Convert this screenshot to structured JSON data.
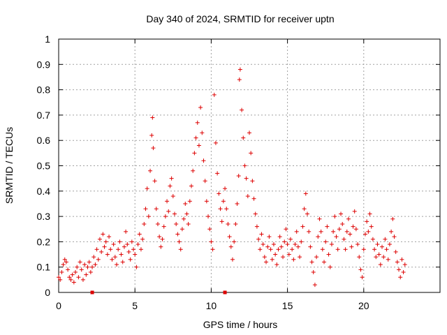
{
  "chart_data": {
    "type": "scatter",
    "title": "Day 340 of 2024, SRMTID for receiver uptn",
    "xlabel": "GPS time / hours",
    "ylabel": "SRMTID / TECUs",
    "xlim": [
      0,
      25
    ],
    "ylim": [
      0,
      1
    ],
    "x_ticks": [
      0,
      5,
      10,
      15,
      20
    ],
    "x_tick_labels": [
      "0",
      "5",
      "10",
      "15",
      "20"
    ],
    "y_ticks": [
      0,
      0.1,
      0.2,
      0.3,
      0.4,
      0.5,
      0.6,
      0.7,
      0.8,
      0.9,
      1
    ],
    "y_tick_labels": [
      "0",
      "0.1",
      "0.2",
      "0.3",
      "0.4",
      "0.5",
      "0.6",
      "0.7",
      "0.8",
      "0.9",
      "1"
    ],
    "grid": true,
    "marker": "+",
    "color": "#dd0000",
    "series": [
      {
        "name": "SRMTID",
        "points": [
          [
            0.0,
            0.06
          ],
          [
            0.1,
            0.05
          ],
          [
            0.2,
            0.08
          ],
          [
            0.3,
            0.11
          ],
          [
            0.4,
            0.13
          ],
          [
            0.5,
            0.12
          ],
          [
            0.6,
            0.09
          ],
          [
            0.7,
            0.06
          ],
          [
            0.8,
            0.05
          ],
          [
            0.9,
            0.07
          ],
          [
            1.0,
            0.04
          ],
          [
            1.1,
            0.08
          ],
          [
            1.2,
            0.1
          ],
          [
            1.3,
            0.06
          ],
          [
            1.4,
            0.12
          ],
          [
            1.5,
            0.09
          ],
          [
            1.6,
            0.05
          ],
          [
            1.7,
            0.11
          ],
          [
            1.8,
            0.07
          ],
          [
            1.9,
            0.1
          ],
          [
            2.0,
            0.12
          ],
          [
            2.1,
            0.08
          ],
          [
            2.2,
            0.1
          ],
          [
            2.3,
            0.14
          ],
          [
            2.4,
            0.11
          ],
          [
            2.5,
            0.17
          ],
          [
            2.6,
            0.13
          ],
          [
            2.7,
            0.21
          ],
          [
            2.8,
            0.16
          ],
          [
            2.9,
            0.23
          ],
          [
            3.0,
            0.18
          ],
          [
            3.1,
            0.2
          ],
          [
            3.2,
            0.15
          ],
          [
            3.3,
            0.22
          ],
          [
            3.4,
            0.17
          ],
          [
            3.5,
            0.13
          ],
          [
            3.6,
            0.19
          ],
          [
            3.7,
            0.14
          ],
          [
            3.8,
            0.11
          ],
          [
            3.9,
            0.17
          ],
          [
            4.0,
            0.2
          ],
          [
            4.1,
            0.15
          ],
          [
            4.2,
            0.12
          ],
          [
            4.3,
            0.18
          ],
          [
            4.4,
            0.24
          ],
          [
            4.5,
            0.19
          ],
          [
            4.6,
            0.16
          ],
          [
            4.7,
            0.13
          ],
          [
            4.8,
            0.2
          ],
          [
            4.9,
            0.17
          ],
          [
            5.0,
            0.15
          ],
          [
            5.1,
            0.1
          ],
          [
            5.2,
            0.19
          ],
          [
            5.3,
            0.23
          ],
          [
            5.4,
            0.17
          ],
          [
            5.5,
            0.21
          ],
          [
            5.6,
            0.27
          ],
          [
            5.7,
            0.33
          ],
          [
            5.8,
            0.41
          ],
          [
            5.9,
            0.3
          ],
          [
            6.0,
            0.48
          ],
          [
            6.1,
            0.62
          ],
          [
            6.15,
            0.69
          ],
          [
            6.2,
            0.57
          ],
          [
            6.3,
            0.44
          ],
          [
            6.4,
            0.33
          ],
          [
            6.5,
            0.27
          ],
          [
            6.6,
            0.22
          ],
          [
            6.7,
            0.18
          ],
          [
            6.8,
            0.21
          ],
          [
            6.9,
            0.26
          ],
          [
            7.0,
            0.3
          ],
          [
            7.1,
            0.36
          ],
          [
            7.2,
            0.32
          ],
          [
            7.3,
            0.42
          ],
          [
            7.4,
            0.45
          ],
          [
            7.5,
            0.38
          ],
          [
            7.6,
            0.31
          ],
          [
            7.7,
            0.27
          ],
          [
            7.8,
            0.23
          ],
          [
            7.9,
            0.2
          ],
          [
            8.0,
            0.17
          ],
          [
            8.1,
            0.25
          ],
          [
            8.2,
            0.29
          ],
          [
            8.3,
            0.35
          ],
          [
            8.4,
            0.31
          ],
          [
            8.5,
            0.27
          ],
          [
            8.6,
            0.36
          ],
          [
            8.7,
            0.42
          ],
          [
            8.8,
            0.48
          ],
          [
            8.9,
            0.55
          ],
          [
            9.0,
            0.61
          ],
          [
            9.1,
            0.67
          ],
          [
            9.2,
            0.58
          ],
          [
            9.3,
            0.73
          ],
          [
            9.4,
            0.63
          ],
          [
            9.5,
            0.52
          ],
          [
            9.6,
            0.44
          ],
          [
            9.7,
            0.36
          ],
          [
            9.8,
            0.3
          ],
          [
            9.9,
            0.25
          ],
          [
            10.0,
            0.2
          ],
          [
            10.1,
            0.17
          ],
          [
            10.2,
            0.78
          ],
          [
            10.3,
            0.59
          ],
          [
            10.4,
            0.47
          ],
          [
            10.5,
            0.39
          ],
          [
            10.6,
            0.33
          ],
          [
            10.7,
            0.28
          ],
          [
            10.8,
            0.36
          ],
          [
            10.9,
            0.41
          ],
          [
            11.0,
            0.33
          ],
          [
            11.1,
            0.27
          ],
          [
            11.2,
            0.22
          ],
          [
            11.3,
            0.18
          ],
          [
            11.4,
            0.13
          ],
          [
            11.5,
            0.2
          ],
          [
            11.6,
            0.27
          ],
          [
            11.7,
            0.35
          ],
          [
            11.8,
            0.46
          ],
          [
            11.85,
            0.84
          ],
          [
            11.9,
            0.88
          ],
          [
            12.0,
            0.72
          ],
          [
            12.1,
            0.61
          ],
          [
            12.2,
            0.5
          ],
          [
            12.3,
            0.45
          ],
          [
            12.4,
            0.38
          ],
          [
            12.5,
            0.63
          ],
          [
            12.6,
            0.55
          ],
          [
            12.7,
            0.44
          ],
          [
            12.8,
            0.37
          ],
          [
            12.9,
            0.31
          ],
          [
            13.0,
            0.26
          ],
          [
            13.1,
            0.21
          ],
          [
            13.2,
            0.17
          ],
          [
            13.3,
            0.23
          ],
          [
            13.4,
            0.19
          ],
          [
            13.5,
            0.14
          ],
          [
            13.6,
            0.12
          ],
          [
            13.7,
            0.18
          ],
          [
            13.8,
            0.22
          ],
          [
            13.9,
            0.17
          ],
          [
            14.0,
            0.13
          ],
          [
            14.1,
            0.19
          ],
          [
            14.2,
            0.15
          ],
          [
            14.3,
            0.11
          ],
          [
            14.4,
            0.17
          ],
          [
            14.5,
            0.22
          ],
          [
            14.6,
            0.18
          ],
          [
            14.7,
            0.14
          ],
          [
            14.8,
            0.2
          ],
          [
            14.9,
            0.25
          ],
          [
            15.0,
            0.19
          ],
          [
            15.1,
            0.15
          ],
          [
            15.2,
            0.21
          ],
          [
            15.3,
            0.17
          ],
          [
            15.4,
            0.13
          ],
          [
            15.5,
            0.19
          ],
          [
            15.6,
            0.24
          ],
          [
            15.7,
            0.18
          ],
          [
            15.8,
            0.14
          ],
          [
            15.9,
            0.2
          ],
          [
            16.0,
            0.26
          ],
          [
            16.1,
            0.33
          ],
          [
            16.2,
            0.39
          ],
          [
            16.3,
            0.31
          ],
          [
            16.4,
            0.24
          ],
          [
            16.5,
            0.18
          ],
          [
            16.6,
            0.12
          ],
          [
            16.7,
            0.08
          ],
          [
            16.8,
            0.03
          ],
          [
            16.9,
            0.14
          ],
          [
            17.0,
            0.22
          ],
          [
            17.1,
            0.29
          ],
          [
            17.2,
            0.24
          ],
          [
            17.3,
            0.17
          ],
          [
            17.4,
            0.12
          ],
          [
            17.5,
            0.2
          ],
          [
            17.6,
            0.26
          ],
          [
            17.7,
            0.15
          ],
          [
            17.8,
            0.1
          ],
          [
            17.9,
            0.19
          ],
          [
            18.0,
            0.24
          ],
          [
            18.1,
            0.3
          ],
          [
            18.2,
            0.22
          ],
          [
            18.3,
            0.17
          ],
          [
            18.4,
            0.25
          ],
          [
            18.5,
            0.31
          ],
          [
            18.6,
            0.27
          ],
          [
            18.7,
            0.21
          ],
          [
            18.8,
            0.17
          ],
          [
            18.9,
            0.24
          ],
          [
            19.0,
            0.29
          ],
          [
            19.1,
            0.23
          ],
          [
            19.2,
            0.18
          ],
          [
            19.3,
            0.26
          ],
          [
            19.4,
            0.32
          ],
          [
            19.5,
            0.25
          ],
          [
            19.6,
            0.19
          ],
          [
            19.7,
            0.14
          ],
          [
            19.8,
            0.09
          ],
          [
            19.9,
            0.06
          ],
          [
            20.0,
            0.17
          ],
          [
            20.1,
            0.23
          ],
          [
            20.2,
            0.28
          ],
          [
            20.3,
            0.24
          ],
          [
            20.4,
            0.31
          ],
          [
            20.5,
            0.26
          ],
          [
            20.6,
            0.21
          ],
          [
            20.7,
            0.17
          ],
          [
            20.8,
            0.14
          ],
          [
            20.9,
            0.19
          ],
          [
            21.0,
            0.15
          ],
          [
            21.1,
            0.11
          ],
          [
            21.2,
            0.18
          ],
          [
            21.3,
            0.14
          ],
          [
            21.4,
            0.21
          ],
          [
            21.5,
            0.17
          ],
          [
            21.6,
            0.13
          ],
          [
            21.7,
            0.19
          ],
          [
            21.8,
            0.24
          ],
          [
            21.9,
            0.29
          ],
          [
            22.0,
            0.22
          ],
          [
            22.1,
            0.16
          ],
          [
            22.2,
            0.12
          ],
          [
            22.3,
            0.09
          ],
          [
            22.4,
            0.06
          ],
          [
            22.5,
            0.13
          ],
          [
            22.6,
            0.08
          ],
          [
            22.7,
            0.11
          ]
        ]
      }
    ],
    "gap_markers_x": [
      2.2,
      10.9
    ]
  }
}
